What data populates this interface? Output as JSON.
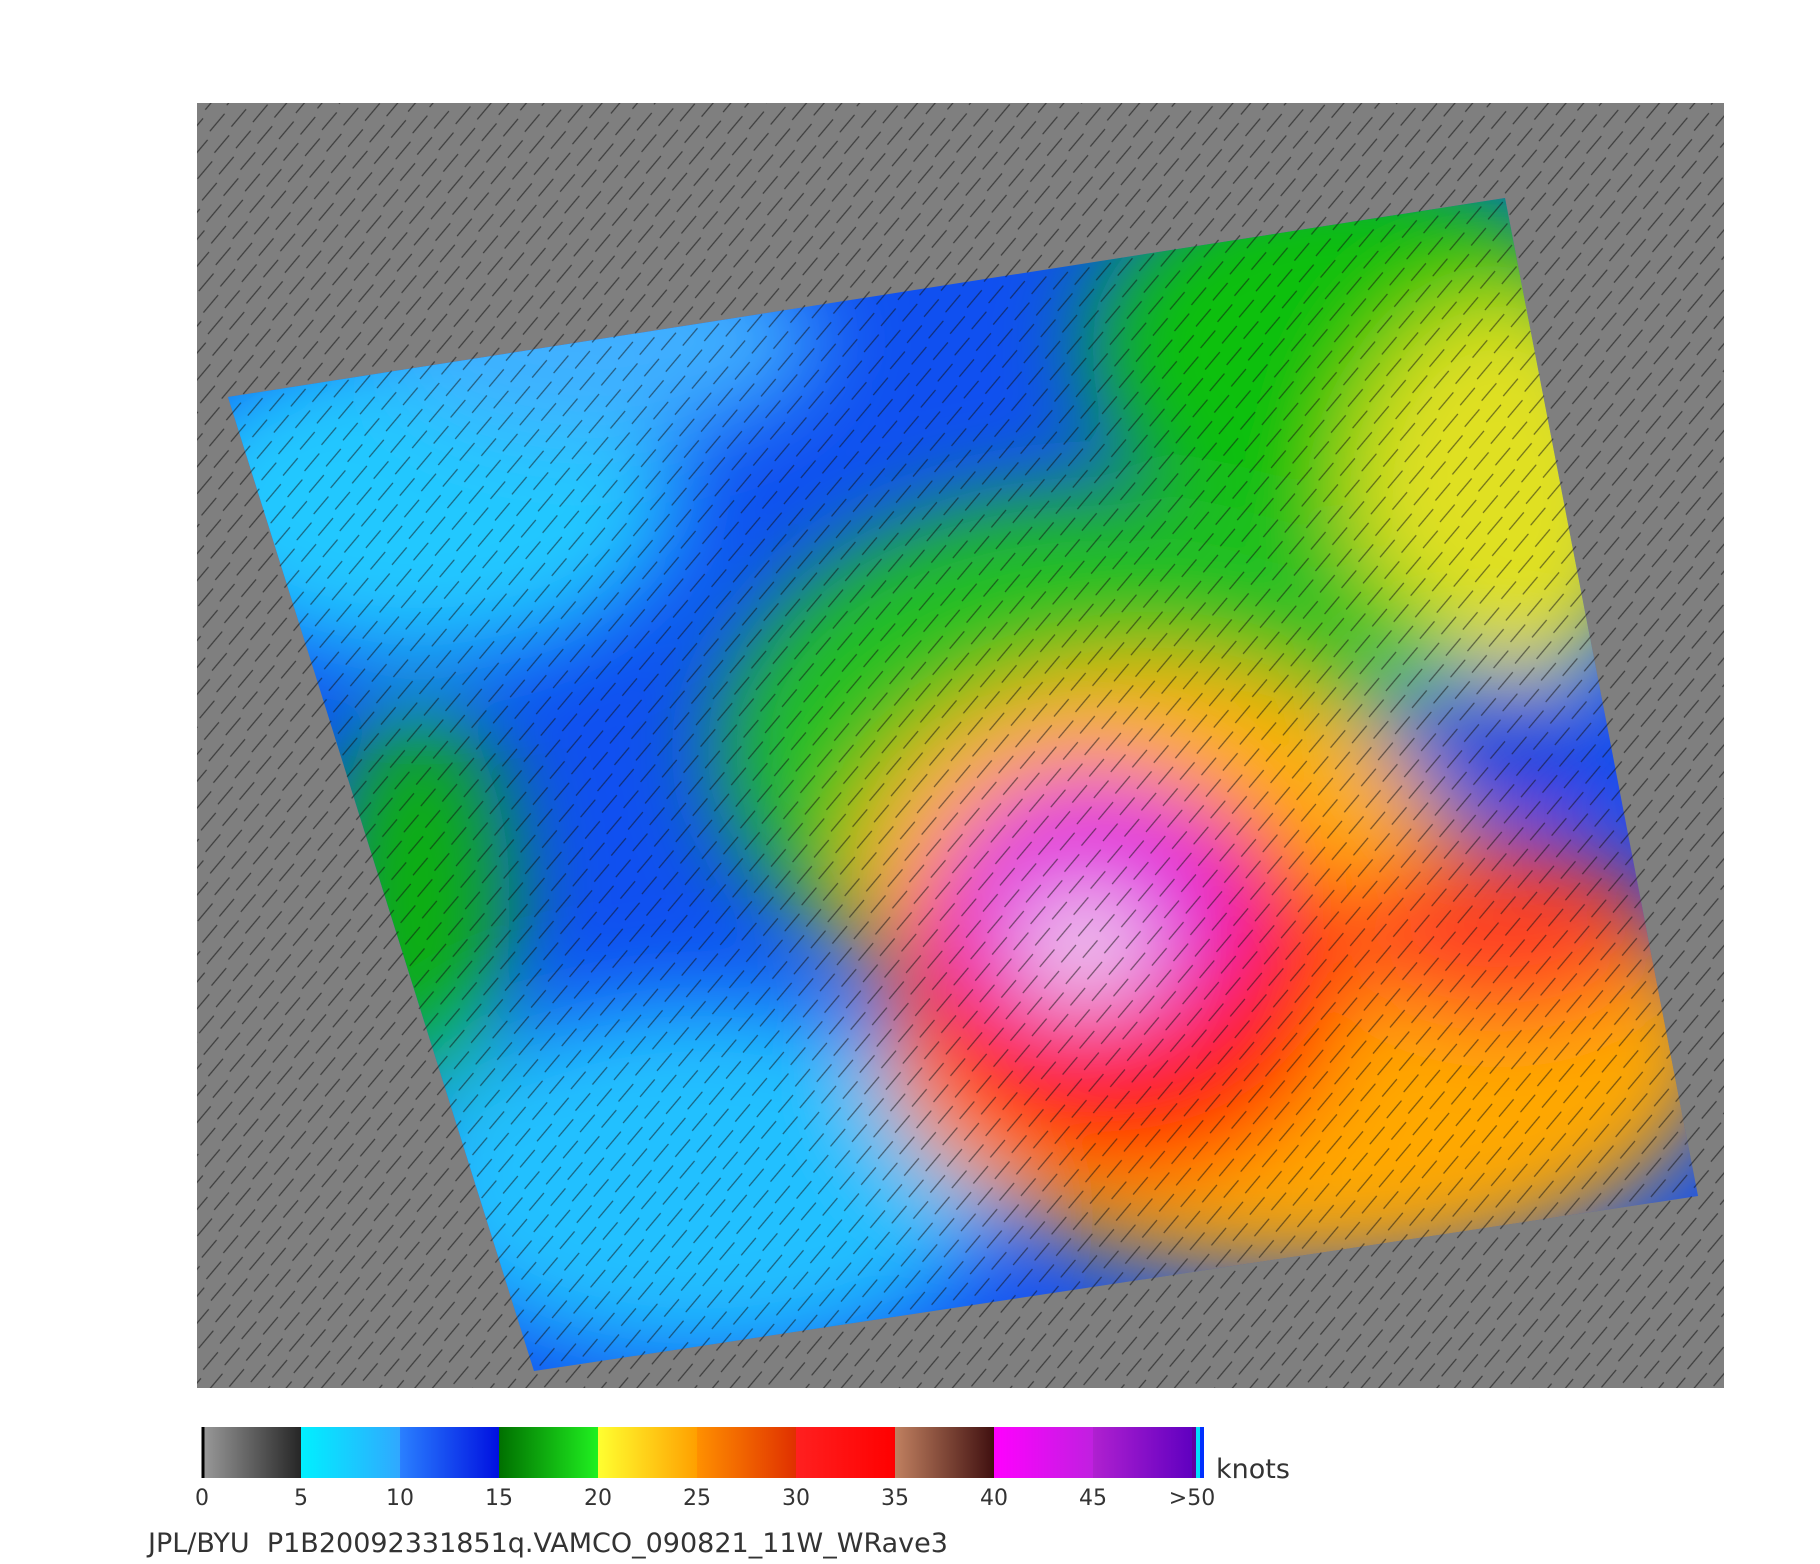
{
  "colorbar": {
    "range": [
      0,
      50
    ],
    "ticks": [
      0,
      5,
      10,
      15,
      20,
      25,
      30,
      35,
      40,
      45,
      {
        "value": 50,
        "label": ">50"
      }
    ],
    "bands": [
      [
        "#9a9a9a",
        "#262626"
      ],
      [
        "#00f0ff",
        "#30a8ff"
      ],
      [
        "#2a80ff",
        "#0010e0"
      ],
      [
        "#007000",
        "#20f020"
      ],
      [
        "#ffff30",
        "#ffa000"
      ],
      [
        "#ff9000",
        "#e03000"
      ],
      [
        "#ff2020",
        "#ff0000"
      ],
      [
        "#c08060",
        "#401010"
      ],
      [
        "#ff00ff",
        "#c020e0"
      ],
      [
        "#b020d0",
        "#6000c0"
      ]
    ],
    "unit": "knots"
  },
  "footer": "JPL/BYU  P1B20092331851q.VAMCO_090821_11W_WRave3"
}
